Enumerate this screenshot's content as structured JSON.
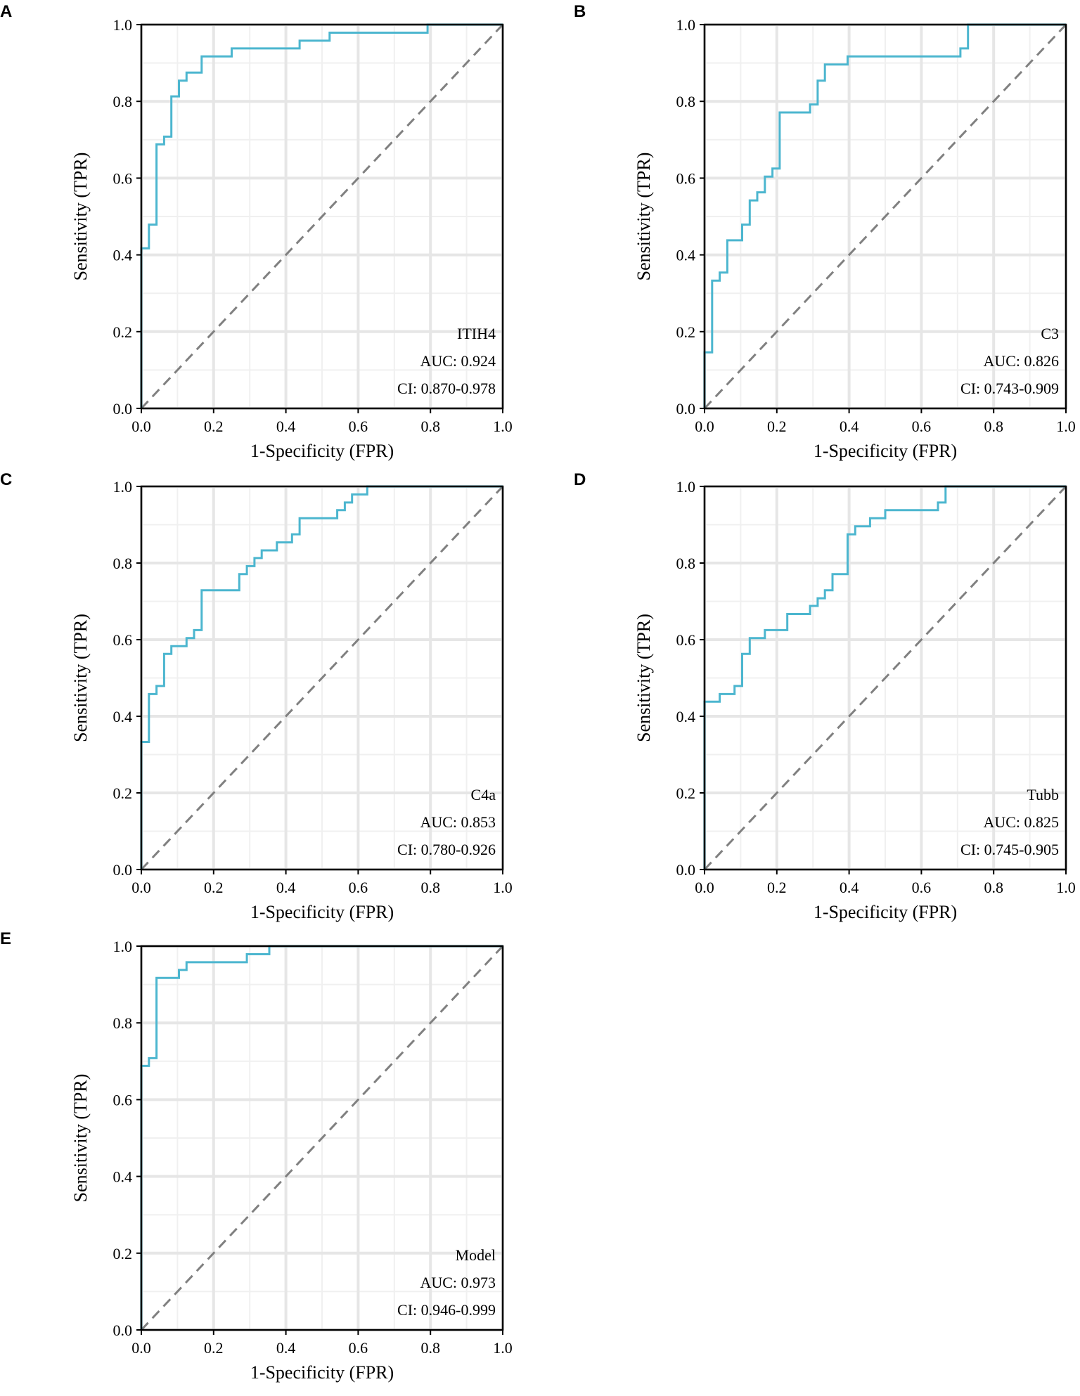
{
  "figure": {
    "line_color": "#4cb6cf",
    "diagonal_color": "#808080"
  },
  "chart_data": [
    {
      "type": "line",
      "panel": "A",
      "title": "ITIH4",
      "auc_text": "AUC: 0.924",
      "ci_text": "CI: 0.870-0.978",
      "xlabel": "1-Specificity (FPR)",
      "ylabel": "Sensitivity (TPR)",
      "xlim": [
        0,
        1
      ],
      "ylim": [
        0,
        1
      ],
      "xticks": [
        "0.0",
        "0.2",
        "0.4",
        "0.6",
        "0.8",
        "1.0"
      ],
      "yticks": [
        "0.0",
        "0.2",
        "0.4",
        "0.6",
        "0.8",
        "1.0"
      ],
      "roc": [
        [
          0,
          0
        ],
        [
          0,
          0.417
        ],
        [
          0.021,
          0.417
        ],
        [
          0.021,
          0.479
        ],
        [
          0.042,
          0.479
        ],
        [
          0.042,
          0.688
        ],
        [
          0.063,
          0.688
        ],
        [
          0.063,
          0.708
        ],
        [
          0.083,
          0.708
        ],
        [
          0.083,
          0.813
        ],
        [
          0.104,
          0.813
        ],
        [
          0.104,
          0.854
        ],
        [
          0.125,
          0.854
        ],
        [
          0.125,
          0.875
        ],
        [
          0.167,
          0.875
        ],
        [
          0.167,
          0.917
        ],
        [
          0.25,
          0.917
        ],
        [
          0.25,
          0.938
        ],
        [
          0.438,
          0.938
        ],
        [
          0.438,
          0.958
        ],
        [
          0.521,
          0.958
        ],
        [
          0.521,
          0.979
        ],
        [
          0.792,
          0.979
        ],
        [
          0.792,
          1.0
        ],
        [
          1.0,
          1.0
        ]
      ]
    },
    {
      "type": "line",
      "panel": "B",
      "title": "C3",
      "auc_text": "AUC: 0.826",
      "ci_text": "CI: 0.743-0.909",
      "xlabel": "1-Specificity (FPR)",
      "ylabel": "Sensitivity (TPR)",
      "xlim": [
        0,
        1
      ],
      "ylim": [
        0,
        1
      ],
      "xticks": [
        "0.0",
        "0.2",
        "0.4",
        "0.6",
        "0.8",
        "1.0"
      ],
      "yticks": [
        "0.0",
        "0.2",
        "0.4",
        "0.6",
        "0.8",
        "1.0"
      ],
      "roc": [
        [
          0,
          0
        ],
        [
          0,
          0.146
        ],
        [
          0.021,
          0.146
        ],
        [
          0.021,
          0.333
        ],
        [
          0.042,
          0.333
        ],
        [
          0.042,
          0.354
        ],
        [
          0.063,
          0.354
        ],
        [
          0.063,
          0.438
        ],
        [
          0.104,
          0.438
        ],
        [
          0.104,
          0.479
        ],
        [
          0.125,
          0.479
        ],
        [
          0.125,
          0.542
        ],
        [
          0.146,
          0.542
        ],
        [
          0.146,
          0.563
        ],
        [
          0.167,
          0.563
        ],
        [
          0.167,
          0.604
        ],
        [
          0.188,
          0.604
        ],
        [
          0.188,
          0.625
        ],
        [
          0.208,
          0.625
        ],
        [
          0.208,
          0.771
        ],
        [
          0.292,
          0.771
        ],
        [
          0.292,
          0.792
        ],
        [
          0.313,
          0.792
        ],
        [
          0.313,
          0.854
        ],
        [
          0.333,
          0.854
        ],
        [
          0.333,
          0.896
        ],
        [
          0.396,
          0.896
        ],
        [
          0.396,
          0.917
        ],
        [
          0.708,
          0.917
        ],
        [
          0.708,
          0.938
        ],
        [
          0.729,
          0.938
        ],
        [
          0.729,
          1.0
        ],
        [
          1.0,
          1.0
        ]
      ]
    },
    {
      "type": "line",
      "panel": "C",
      "title": "C4a",
      "auc_text": "AUC: 0.853",
      "ci_text": "CI: 0.780-0.926",
      "xlabel": "1-Specificity (FPR)",
      "ylabel": "Sensitivity (TPR)",
      "xlim": [
        0,
        1
      ],
      "ylim": [
        0,
        1
      ],
      "xticks": [
        "0.0",
        "0.2",
        "0.4",
        "0.6",
        "0.8",
        "1.0"
      ],
      "yticks": [
        "0.0",
        "0.2",
        "0.4",
        "0.6",
        "0.8",
        "1.0"
      ],
      "roc": [
        [
          0,
          0
        ],
        [
          0,
          0.333
        ],
        [
          0.021,
          0.333
        ],
        [
          0.021,
          0.458
        ],
        [
          0.042,
          0.458
        ],
        [
          0.042,
          0.479
        ],
        [
          0.063,
          0.479
        ],
        [
          0.063,
          0.563
        ],
        [
          0.083,
          0.563
        ],
        [
          0.083,
          0.583
        ],
        [
          0.125,
          0.583
        ],
        [
          0.125,
          0.604
        ],
        [
          0.146,
          0.604
        ],
        [
          0.146,
          0.625
        ],
        [
          0.167,
          0.625
        ],
        [
          0.167,
          0.729
        ],
        [
          0.271,
          0.729
        ],
        [
          0.271,
          0.771
        ],
        [
          0.292,
          0.771
        ],
        [
          0.292,
          0.792
        ],
        [
          0.313,
          0.792
        ],
        [
          0.313,
          0.813
        ],
        [
          0.333,
          0.813
        ],
        [
          0.333,
          0.833
        ],
        [
          0.375,
          0.833
        ],
        [
          0.375,
          0.854
        ],
        [
          0.417,
          0.854
        ],
        [
          0.417,
          0.875
        ],
        [
          0.438,
          0.875
        ],
        [
          0.438,
          0.917
        ],
        [
          0.542,
          0.917
        ],
        [
          0.542,
          0.938
        ],
        [
          0.563,
          0.938
        ],
        [
          0.563,
          0.958
        ],
        [
          0.583,
          0.958
        ],
        [
          0.583,
          0.979
        ],
        [
          0.625,
          0.979
        ],
        [
          0.625,
          1.0
        ],
        [
          1.0,
          1.0
        ]
      ]
    },
    {
      "type": "line",
      "panel": "D",
      "title": "Tubb",
      "auc_text": "AUC: 0.825",
      "ci_text": "CI: 0.745-0.905",
      "xlabel": "1-Specificity (FPR)",
      "ylabel": "Sensitivity (TPR)",
      "xlim": [
        0,
        1
      ],
      "ylim": [
        0,
        1
      ],
      "xticks": [
        "0.0",
        "0.2",
        "0.4",
        "0.6",
        "0.8",
        "1.0"
      ],
      "yticks": [
        "0.0",
        "0.2",
        "0.4",
        "0.6",
        "0.8",
        "1.0"
      ],
      "roc": [
        [
          0,
          0
        ],
        [
          0,
          0.438
        ],
        [
          0.042,
          0.438
        ],
        [
          0.042,
          0.458
        ],
        [
          0.083,
          0.458
        ],
        [
          0.083,
          0.479
        ],
        [
          0.104,
          0.479
        ],
        [
          0.104,
          0.563
        ],
        [
          0.125,
          0.563
        ],
        [
          0.125,
          0.604
        ],
        [
          0.167,
          0.604
        ],
        [
          0.167,
          0.625
        ],
        [
          0.229,
          0.625
        ],
        [
          0.229,
          0.667
        ],
        [
          0.292,
          0.667
        ],
        [
          0.292,
          0.688
        ],
        [
          0.313,
          0.688
        ],
        [
          0.313,
          0.708
        ],
        [
          0.333,
          0.708
        ],
        [
          0.333,
          0.729
        ],
        [
          0.354,
          0.729
        ],
        [
          0.354,
          0.771
        ],
        [
          0.396,
          0.771
        ],
        [
          0.396,
          0.875
        ],
        [
          0.417,
          0.875
        ],
        [
          0.417,
          0.896
        ],
        [
          0.458,
          0.896
        ],
        [
          0.458,
          0.917
        ],
        [
          0.5,
          0.917
        ],
        [
          0.5,
          0.938
        ],
        [
          0.646,
          0.938
        ],
        [
          0.646,
          0.958
        ],
        [
          0.667,
          0.958
        ],
        [
          0.667,
          1.0
        ],
        [
          1.0,
          1.0
        ]
      ]
    },
    {
      "type": "line",
      "panel": "E",
      "title": "Model",
      "auc_text": "AUC: 0.973",
      "ci_text": "CI: 0.946-0.999",
      "xlabel": "1-Specificity (FPR)",
      "ylabel": "Sensitivity (TPR)",
      "xlim": [
        0,
        1
      ],
      "ylim": [
        0,
        1
      ],
      "xticks": [
        "0.0",
        "0.2",
        "0.4",
        "0.6",
        "0.8",
        "1.0"
      ],
      "yticks": [
        "0.0",
        "0.2",
        "0.4",
        "0.6",
        "0.8",
        "1.0"
      ],
      "roc": [
        [
          0,
          0
        ],
        [
          0,
          0.688
        ],
        [
          0.021,
          0.688
        ],
        [
          0.021,
          0.708
        ],
        [
          0.042,
          0.708
        ],
        [
          0.042,
          0.917
        ],
        [
          0.104,
          0.917
        ],
        [
          0.104,
          0.938
        ],
        [
          0.125,
          0.938
        ],
        [
          0.125,
          0.958
        ],
        [
          0.292,
          0.958
        ],
        [
          0.292,
          0.979
        ],
        [
          0.354,
          0.979
        ],
        [
          0.354,
          1.0
        ],
        [
          1.0,
          1.0
        ]
      ]
    }
  ]
}
